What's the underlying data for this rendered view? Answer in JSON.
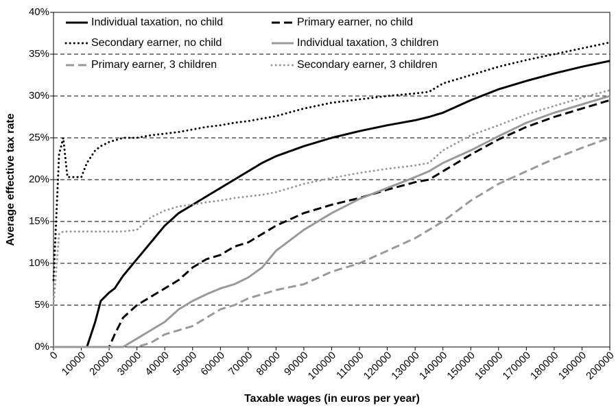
{
  "chart_data": {
    "type": "line",
    "x_label": "Taxable wages (in euros per year)",
    "y_label": "Average effective tax rate",
    "x": [
      0,
      2000,
      3500,
      5000,
      10000,
      12000,
      15000,
      17000,
      20000,
      22000,
      25000,
      30000,
      35000,
      40000,
      45000,
      50000,
      55000,
      60000,
      65000,
      70000,
      75000,
      80000,
      90000,
      100000,
      110000,
      120000,
      130000,
      135000,
      140000,
      150000,
      160000,
      170000,
      180000,
      190000,
      200000
    ],
    "series": [
      {
        "name": "Individual taxation, no child",
        "color": "#000000",
        "style": "solid",
        "values": [
          0,
          0,
          0,
          0,
          0,
          0,
          3,
          5.5,
          6.5,
          7,
          8.5,
          10.5,
          12.5,
          14.5,
          16,
          17,
          18,
          19,
          20,
          21,
          22,
          22.8,
          24,
          25,
          25.8,
          26.5,
          27.1,
          27.5,
          28,
          29.5,
          30.8,
          31.8,
          32.7,
          33.5,
          34.2
        ]
      },
      {
        "name": "Primary earner, no child",
        "color": "#000000",
        "style": "dashed",
        "values": [
          0,
          0,
          0,
          0,
          0,
          0,
          0,
          0,
          0,
          1.5,
          3.5,
          5,
          6,
          7,
          8,
          9.5,
          10.5,
          11,
          12,
          12.5,
          13.5,
          14.5,
          16,
          17,
          17.8,
          18.8,
          19.7,
          20,
          21,
          23,
          24.8,
          26.3,
          27.5,
          28.5,
          29.5
        ]
      },
      {
        "name": "Secondary earner, no child",
        "color": "#000000",
        "style": "dotted",
        "values": [
          8,
          23,
          25,
          20.3,
          20.3,
          22,
          23.5,
          24,
          24.5,
          24.7,
          25,
          25,
          25.3,
          25.5,
          25.7,
          26,
          26.3,
          26.5,
          26.8,
          27,
          27.3,
          27.6,
          28.5,
          29.2,
          29.6,
          30,
          30.3,
          30.5,
          31.5,
          32.5,
          33.5,
          34.3,
          35,
          35.7,
          36.4
        ]
      },
      {
        "name": "Individual taxation, 3 children",
        "color": "#999999",
        "style": "solid",
        "values": [
          0,
          0,
          0,
          0,
          0,
          0,
          0,
          0,
          0,
          0,
          0,
          1,
          2,
          3,
          4.5,
          5.5,
          6.3,
          7,
          7.5,
          8.3,
          9.5,
          11.5,
          14,
          16,
          17.7,
          19,
          20.3,
          21,
          22,
          23.5,
          25.2,
          26.8,
          28,
          29,
          30
        ]
      },
      {
        "name": "Primary earner, 3 children",
        "color": "#999999",
        "style": "dashed",
        "values": [
          0,
          0,
          0,
          0,
          0,
          0,
          0,
          0,
          0,
          0,
          0,
          0,
          0.5,
          1.5,
          2,
          2.5,
          3.5,
          4.5,
          5,
          5.8,
          6.3,
          6.8,
          7.5,
          9,
          10,
          11.5,
          13,
          14,
          15,
          17.5,
          19.5,
          21,
          22.5,
          23.8,
          25
        ]
      },
      {
        "name": "Secondary earner, 3 children",
        "color": "#999999",
        "style": "dotted",
        "values": [
          5,
          13.5,
          13.8,
          13.8,
          13.8,
          13.8,
          13.8,
          13.8,
          13.8,
          13.8,
          13.8,
          14,
          15.5,
          16.3,
          16.8,
          17,
          17.3,
          17.5,
          17.8,
          18,
          18.2,
          18.5,
          19.5,
          20.2,
          20.8,
          21.3,
          21.7,
          22,
          23.5,
          25.3,
          26.5,
          27.8,
          28.8,
          29.8,
          30.7
        ]
      }
    ],
    "xlim": [
      0,
      200000
    ],
    "xticks": [
      0,
      10000,
      20000,
      30000,
      40000,
      50000,
      60000,
      70000,
      80000,
      90000,
      100000,
      110000,
      120000,
      130000,
      140000,
      150000,
      160000,
      170000,
      180000,
      190000,
      200000
    ],
    "ylim": [
      0,
      40
    ],
    "yticks": [
      {
        "value": 0,
        "label": "0%"
      },
      {
        "value": 5,
        "label": "5%"
      },
      {
        "value": 10,
        "label": "10%"
      },
      {
        "value": 15,
        "label": "15%"
      },
      {
        "value": 20,
        "label": "20%"
      },
      {
        "value": 25,
        "label": "25%"
      },
      {
        "value": 30,
        "label": "30%"
      },
      {
        "value": 35,
        "label": "35%"
      },
      {
        "value": 40,
        "label": "40%"
      }
    ],
    "grid": true,
    "legend": "top"
  }
}
